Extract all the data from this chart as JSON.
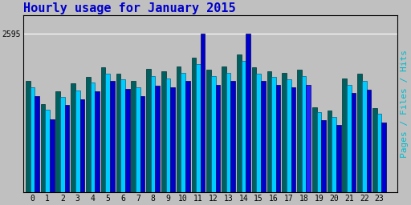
{
  "title": "Hourly usage for January 2015",
  "ylabel": "Pages / Files / Hits",
  "hours": [
    0,
    1,
    2,
    3,
    4,
    5,
    6,
    7,
    8,
    9,
    10,
    11,
    12,
    13,
    14,
    15,
    16,
    17,
    18,
    19,
    20,
    21,
    22,
    23
  ],
  "hits": [
    1580,
    1200,
    1430,
    1520,
    1650,
    1820,
    1700,
    1580,
    1750,
    1720,
    1820,
    2595,
    1760,
    1820,
    2595,
    1820,
    1760,
    1720,
    1760,
    1180,
    1100,
    1630,
    1680,
    1150
  ],
  "files": [
    1720,
    1350,
    1560,
    1670,
    1800,
    1940,
    1850,
    1720,
    1900,
    1870,
    1960,
    2100,
    1900,
    1960,
    2150,
    1950,
    1890,
    1850,
    1900,
    1310,
    1240,
    1760,
    1820,
    1290
  ],
  "pages": [
    1820,
    1450,
    1650,
    1780,
    1890,
    2050,
    1950,
    1830,
    2020,
    1980,
    2060,
    2200,
    2010,
    2060,
    2260,
    2050,
    1980,
    1960,
    2010,
    1400,
    1340,
    1870,
    1940,
    1380
  ],
  "bar_color_pages": "#006060",
  "bar_color_files": "#00CCFF",
  "bar_color_hits": "#0000CC",
  "hit18_color": "#2222FF",
  "background_color": "#C0C0C0",
  "plot_bg_color": "#C0C0C0",
  "title_color": "#0000CC",
  "ylabel_color": "#00BBCC",
  "ytick_label": "2595",
  "ytick_value": 2595,
  "ylim_max": 2900,
  "ylim_min": 0,
  "title_fontsize": 11,
  "ylabel_fontsize": 8,
  "grid_y_values": [
    2595
  ],
  "bar_width": 0.3
}
